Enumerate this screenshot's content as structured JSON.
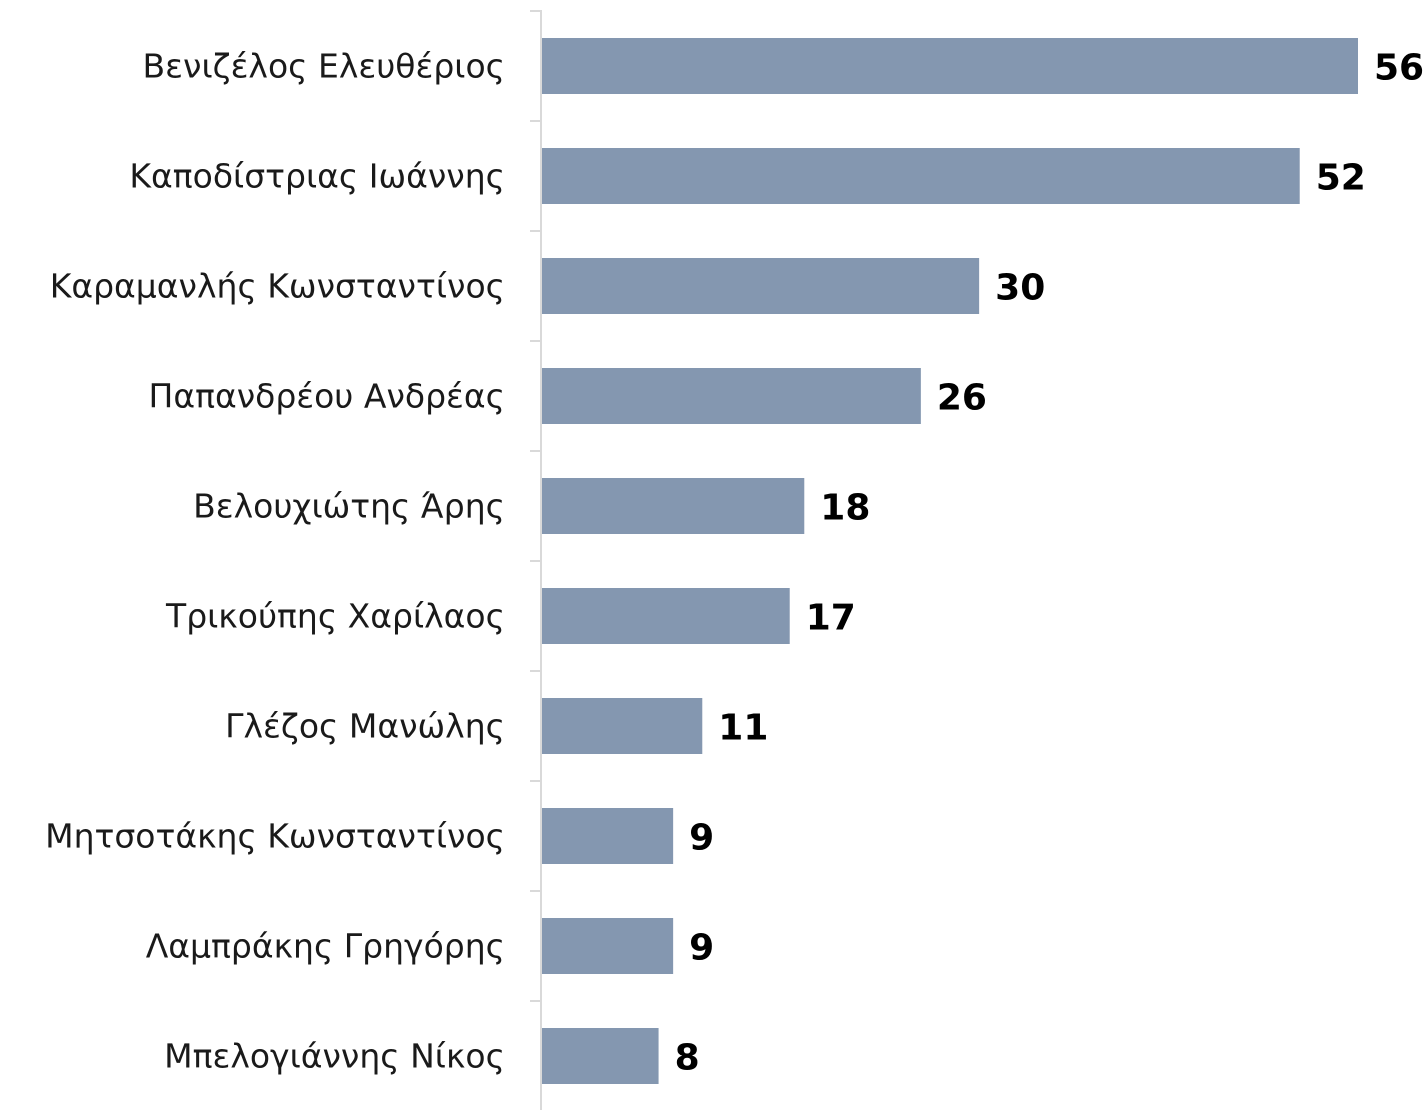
{
  "chart_data": {
    "type": "hbar",
    "categories": [
      "Βενιζέλος Ελευθέριος",
      "Καποδίστριας Ιωάννης",
      "Καραμανλής Κωνσταντίνος",
      "Παπανδρέου Ανδρέας",
      "Βελουχιώτης Άρης",
      "Τρικούπης Χαρίλαος",
      "Γλέζος Μανώλης",
      "Μητσοτάκης Κωνσταντίνος",
      "Λαμπράκης Γρηγόρης",
      "Μπελογιάννης Νίκος"
    ],
    "values": [
      56,
      52,
      30,
      26,
      18,
      17,
      11,
      9,
      9,
      8
    ],
    "color": "#8497b0"
  }
}
